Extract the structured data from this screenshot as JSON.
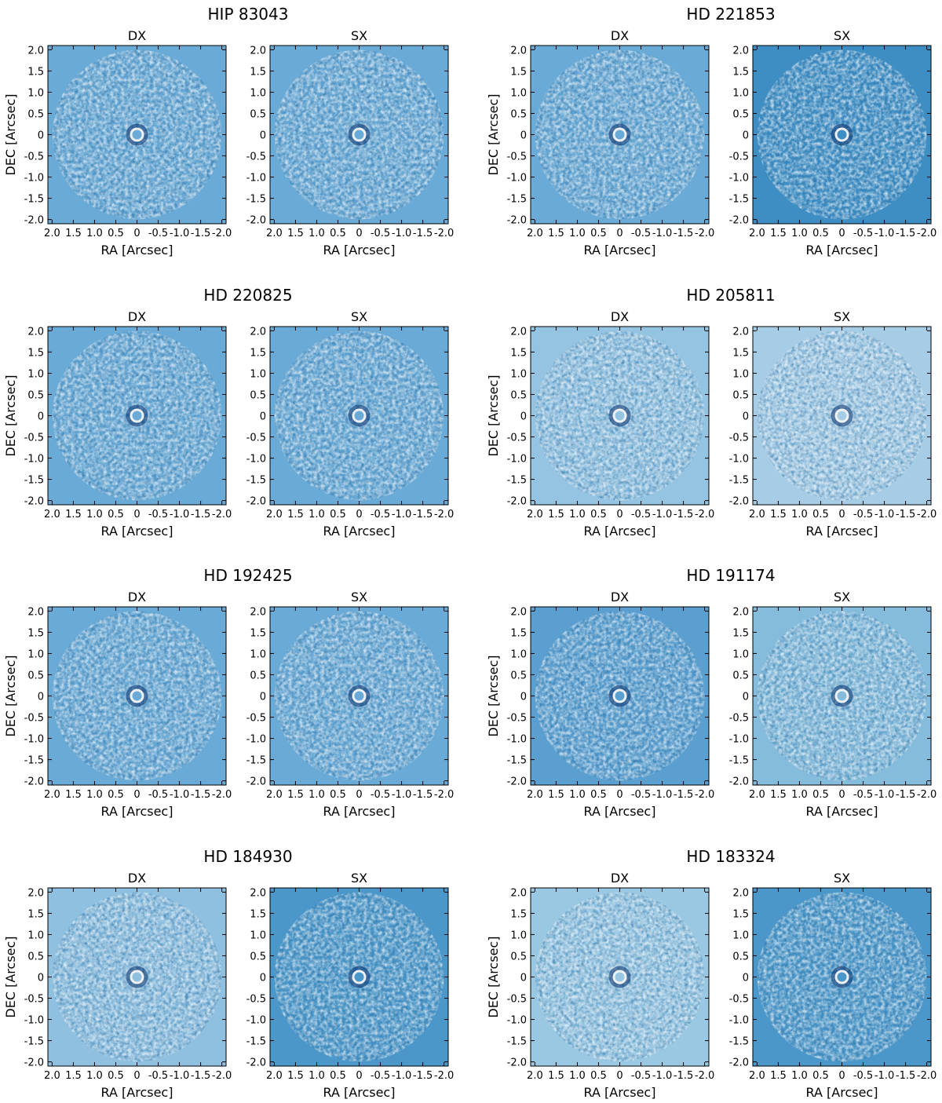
{
  "chart_data": {
    "type": "heatmap",
    "description_units": "arcsec",
    "xlim": [
      2.1,
      -2.1
    ],
    "ylim": [
      2.1,
      -2.1
    ],
    "xticks": [
      2.0,
      1.5,
      1.0,
      0.5,
      0,
      -0.5,
      -1.0,
      -1.5,
      -2.0
    ],
    "xtick_labels": [
      "2.0",
      "1.5",
      "1.0",
      "0.5",
      "0",
      "-0.5",
      "-1.0",
      "-1.5",
      "-2.0"
    ],
    "yticks": [
      -2.0,
      -1.5,
      -1.0,
      -0.5,
      0,
      0.5,
      1.0,
      1.5,
      2.0
    ],
    "ytick_labels": [
      "-2.0",
      "-1.5",
      "-1.0",
      "-0.5",
      "0",
      "0.5",
      "1.0",
      "1.5",
      "2.0"
    ],
    "xlabel": "RA [Arcsec]",
    "ylabel": "DEC [Arcsec]",
    "panel_labels": [
      "DX",
      "SX"
    ],
    "colormap": "Blues",
    "stars": [
      {
        "name": "HIP 83043",
        "dx_bg": "#6aaad6",
        "sx_bg": "#6aaad6"
      },
      {
        "name": "HD 221853",
        "dx_bg": "#6aaad6",
        "sx_bg": "#3e8ec4"
      },
      {
        "name": "HD 220825",
        "dx_bg": "#6aaad6",
        "sx_bg": "#6aaad6"
      },
      {
        "name": "HD 205811",
        "dx_bg": "#95c4e2",
        "sx_bg": "#a7cde6"
      },
      {
        "name": "HD 192425",
        "dx_bg": "#6aaad6",
        "sx_bg": "#6aaad6"
      },
      {
        "name": "HD 191174",
        "dx_bg": "#5a9fd0",
        "sx_bg": "#85bcdc"
      },
      {
        "name": "HD 184930",
        "dx_bg": "#8fc0e0",
        "sx_bg": "#4b97c9"
      },
      {
        "name": "HD 183324",
        "dx_bg": "#9ac8e3",
        "sx_bg": "#4b97c9"
      }
    ]
  }
}
